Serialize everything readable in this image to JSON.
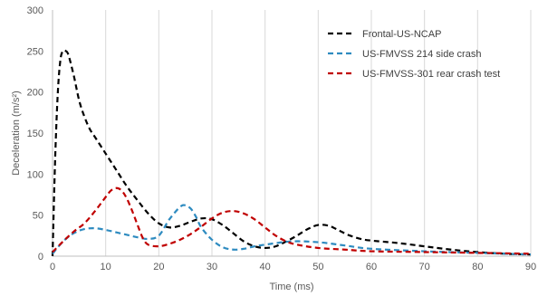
{
  "chart_data": {
    "type": "line",
    "title": "",
    "xlabel": "Time (ms)",
    "ylabel": "Deceleration (m/s²)",
    "xlim": [
      0,
      90
    ],
    "ylim": [
      0,
      300
    ],
    "x_ticks": [
      0,
      10,
      20,
      30,
      40,
      50,
      60,
      70,
      80,
      90
    ],
    "y_ticks": [
      0,
      50,
      100,
      150,
      200,
      250,
      300
    ],
    "grid": "vertical",
    "legend_position": "top-right",
    "series": [
      {
        "name": "Frontal-US-NCAP",
        "color": "#000000",
        "dash": "dashed",
        "x": [
          0,
          0.5,
          1,
          1.5,
          2,
          2.5,
          3,
          4,
          5,
          6,
          7,
          8,
          10,
          12,
          14,
          16,
          18,
          20,
          22,
          24,
          26,
          28,
          30,
          32,
          34,
          36,
          38,
          40,
          42,
          44,
          46,
          48,
          50,
          52,
          54,
          56,
          58,
          60,
          65,
          70,
          75,
          80,
          85,
          90
        ],
        "y": [
          0,
          120,
          200,
          240,
          250,
          250,
          245,
          220,
          190,
          170,
          155,
          145,
          125,
          105,
          85,
          68,
          52,
          40,
          35,
          37,
          42,
          46,
          45,
          38,
          28,
          18,
          12,
          10,
          12,
          18,
          25,
          33,
          38,
          37,
          31,
          25,
          21,
          19,
          16,
          12,
          8,
          5,
          3,
          2
        ]
      },
      {
        "name": "US-FMVSS 214 side crash",
        "color": "#2E8BC0",
        "dash": "dashed",
        "x": [
          0,
          2,
          4,
          6,
          8,
          10,
          12,
          14,
          16,
          18,
          20,
          22,
          24,
          25,
          26,
          27,
          28,
          30,
          32,
          34,
          36,
          38,
          40,
          45,
          50,
          55,
          60,
          70,
          80,
          90
        ],
        "y": [
          3,
          18,
          28,
          33,
          34,
          32,
          29,
          26,
          23,
          21,
          25,
          45,
          60,
          62,
          58,
          48,
          35,
          20,
          11,
          8,
          9,
          12,
          14,
          18,
          17,
          13,
          9,
          6,
          4,
          2
        ]
      },
      {
        "name": "US-FMVSS-301 rear crash test",
        "color": "#C00000",
        "dash": "dashed",
        "x": [
          0,
          2,
          4,
          6,
          8,
          10,
          11,
          12,
          13,
          14,
          15,
          16,
          17,
          18,
          20,
          22,
          24,
          26,
          28,
          30,
          32,
          34,
          36,
          38,
          40,
          42,
          44,
          46,
          50,
          55,
          60,
          70,
          80,
          90
        ],
        "y": [
          5,
          18,
          30,
          40,
          55,
          72,
          80,
          83,
          80,
          70,
          55,
          38,
          22,
          14,
          12,
          15,
          20,
          27,
          36,
          46,
          53,
          55,
          52,
          45,
          35,
          25,
          18,
          14,
          10,
          8,
          6,
          5,
          4,
          3
        ]
      }
    ]
  }
}
